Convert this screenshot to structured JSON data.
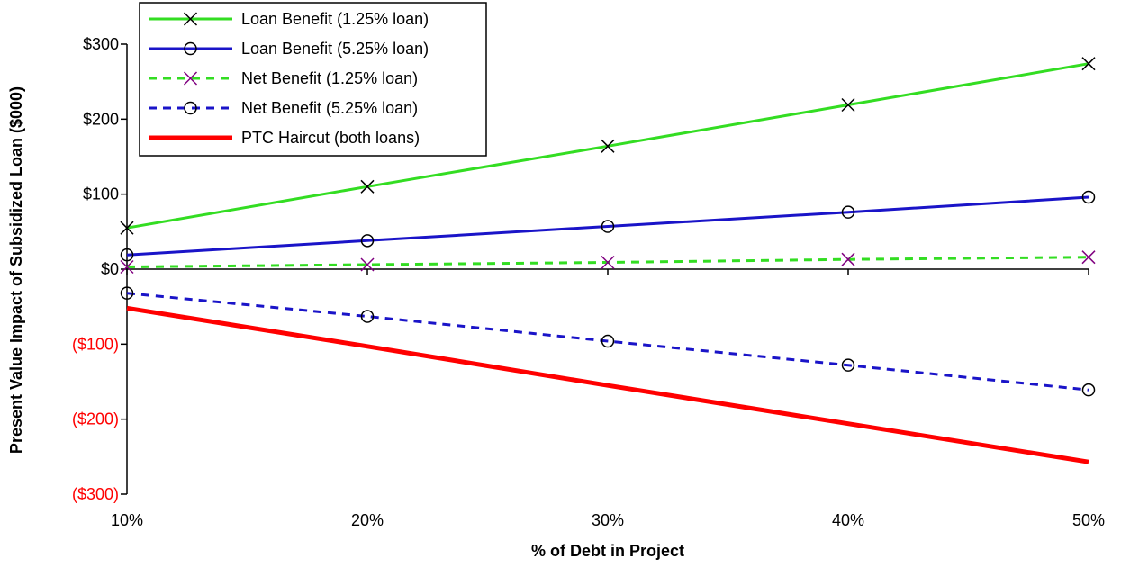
{
  "chart_data": {
    "type": "line",
    "title": "",
    "xlabel": "% of Debt in Project",
    "ylabel": "Present Value Impact of Subsidized Loan ($000)",
    "x": [
      10,
      20,
      30,
      40,
      50
    ],
    "x_tick_labels": [
      "10%",
      "20%",
      "30%",
      "40%",
      "50%"
    ],
    "ylim": [
      -300,
      300
    ],
    "y_ticks": [
      {
        "value": 300,
        "label": "$300",
        "color": "#000000"
      },
      {
        "value": 200,
        "label": "$200",
        "color": "#000000"
      },
      {
        "value": 100,
        "label": "$100",
        "color": "#000000"
      },
      {
        "value": 0,
        "label": "$0",
        "color": "#000000"
      },
      {
        "value": -100,
        "label": "($100)",
        "color": "#ff0000"
      },
      {
        "value": -200,
        "label": "($200)",
        "color": "#ff0000"
      },
      {
        "value": -300,
        "label": "($300)",
        "color": "#ff0000"
      }
    ],
    "grid": false,
    "legend_position": "top-left",
    "series": [
      {
        "name": "Loan Benefit (1.25% loan)",
        "values": [
          55,
          110,
          164,
          219,
          274
        ],
        "color": "#33dd22",
        "dash": "solid",
        "width": 3,
        "marker": "x",
        "marker_color": "#000000"
      },
      {
        "name": "Loan Benefit (5.25% loan)",
        "values": [
          19,
          38,
          57,
          76,
          96
        ],
        "color": "#1a14c8",
        "dash": "solid",
        "width": 3,
        "marker": "circle",
        "marker_color": "#000000"
      },
      {
        "name": "Net Benefit (1.25% loan)",
        "values": [
          3,
          6,
          9,
          13,
          16
        ],
        "color": "#33dd22",
        "dash": "dashed",
        "width": 3,
        "marker": "x",
        "marker_color": "#800080"
      },
      {
        "name": "Net Benefit (5.25% loan)",
        "values": [
          -32,
          -63,
          -96,
          -128,
          -161
        ],
        "color": "#1a14c8",
        "dash": "dashed",
        "width": 3,
        "marker": "circle",
        "marker_color": "#000000"
      },
      {
        "name": "PTC Haircut (both loans)",
        "values": [
          -52,
          -103,
          -155,
          -206,
          -257
        ],
        "color": "#ff0000",
        "dash": "solid",
        "width": 5,
        "marker": "none",
        "marker_color": "#ff0000"
      }
    ]
  }
}
